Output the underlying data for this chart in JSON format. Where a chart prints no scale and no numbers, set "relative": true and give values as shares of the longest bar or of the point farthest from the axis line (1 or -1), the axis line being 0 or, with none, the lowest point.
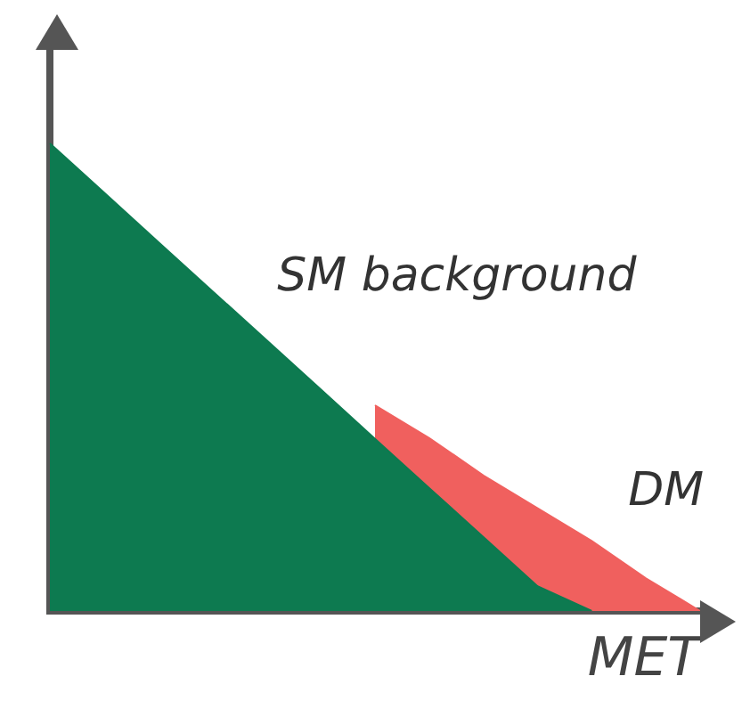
{
  "chart_data": {
    "type": "area",
    "relative": true,
    "xlabel": "MET",
    "legend": false,
    "grid": false,
    "categories": [
      null,
      null,
      null,
      null,
      null,
      null,
      null,
      null,
      null,
      null,
      null,
      null,
      null
    ],
    "series": [
      {
        "name": "SM background",
        "color": "#0d7a50",
        "values": [
          1,
          0.895,
          0.789,
          0.684,
          0.579,
          0.474,
          0.368,
          0.263,
          0.158,
          0.053,
          0,
          null,
          null
        ]
      },
      {
        "name": "DM",
        "color": "#f0605e",
        "values": [
          null,
          null,
          null,
          null,
          null,
          null,
          0.44,
          0.37,
          0.29,
          0.22,
          0.15,
          0.07,
          0
        ]
      }
    ]
  }
}
